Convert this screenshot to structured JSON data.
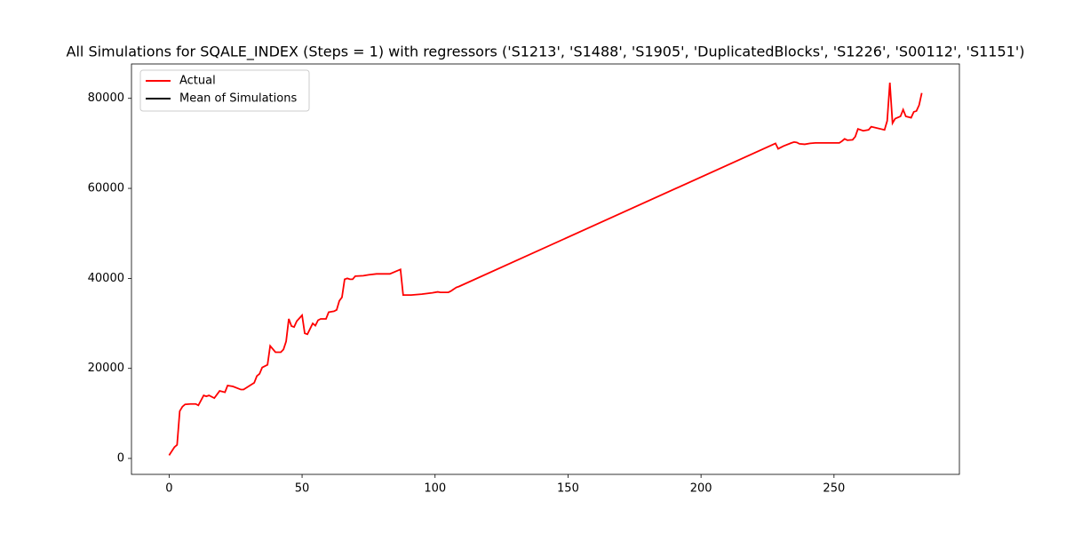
{
  "chart_data": {
    "type": "line",
    "title": "All Simulations for SQALE_INDEX (Steps = 1) with regressors ('S1213', 'S1488', 'S1905', 'DuplicatedBlocks', 'S1226', 'S00112', 'S1151')",
    "legend": "upper left",
    "xlim": [
      -14.15,
      297.15
    ],
    "xticks": [
      0,
      50,
      100,
      150,
      200,
      250
    ],
    "ylim": [
      -3545,
      87645
    ],
    "yticks": [
      0,
      20000,
      40000,
      60000,
      80000
    ],
    "series": [
      {
        "name": "Actual",
        "color": "#ff0000",
        "x": [
          0,
          2,
          3,
          4,
          5,
          6,
          8,
          10,
          11,
          13,
          14,
          15,
          17,
          19,
          21,
          22,
          24,
          27,
          28,
          32,
          33,
          34,
          35,
          37,
          38,
          40,
          42,
          43,
          44,
          45,
          46,
          47,
          48,
          50,
          51,
          52,
          54,
          55,
          56,
          57,
          59,
          60,
          62,
          63,
          64,
          65,
          66,
          67,
          68,
          69,
          70,
          73,
          75,
          78,
          83,
          85,
          87,
          88,
          91,
          95,
          99,
          101,
          102,
          105,
          106,
          108,
          109,
          228,
          229,
          231,
          234,
          235,
          236,
          237,
          239,
          241,
          243,
          252,
          253,
          254,
          255,
          257,
          258,
          259,
          261,
          263,
          264,
          269,
          270,
          271,
          272,
          273,
          275,
          276,
          277,
          279,
          280,
          281,
          282,
          283
        ],
        "values": [
          700,
          2500,
          3000,
          10500,
          11500,
          12000,
          12100,
          12100,
          11800,
          14000,
          13800,
          14000,
          13400,
          15000,
          14700,
          16200,
          16000,
          15300,
          15300,
          16800,
          18300,
          18800,
          20200,
          20800,
          25000,
          23600,
          23600,
          24200,
          26000,
          31000,
          29400,
          29200,
          30500,
          31800,
          27800,
          27600,
          30000,
          29500,
          30700,
          31000,
          31000,
          32500,
          32700,
          33000,
          35000,
          35800,
          39800,
          40000,
          39800,
          39800,
          40500,
          40600,
          40800,
          41000,
          41000,
          41500,
          42000,
          36300,
          36300,
          36500,
          36800,
          37000,
          36900,
          36900,
          37200,
          38000,
          38200,
          70000,
          68800,
          69400,
          70100,
          70300,
          70200,
          69900,
          69800,
          70000,
          70100,
          70100,
          70500,
          71000,
          70700,
          70800,
          71500,
          73200,
          72800,
          73000,
          73700,
          73000,
          75000,
          83500,
          74500,
          75500,
          76000,
          77500,
          76000,
          75700,
          77000,
          77200,
          78500,
          81200
        ]
      },
      {
        "name": "Mean of Simulations",
        "color": "#000000",
        "x": [],
        "values": []
      }
    ]
  }
}
